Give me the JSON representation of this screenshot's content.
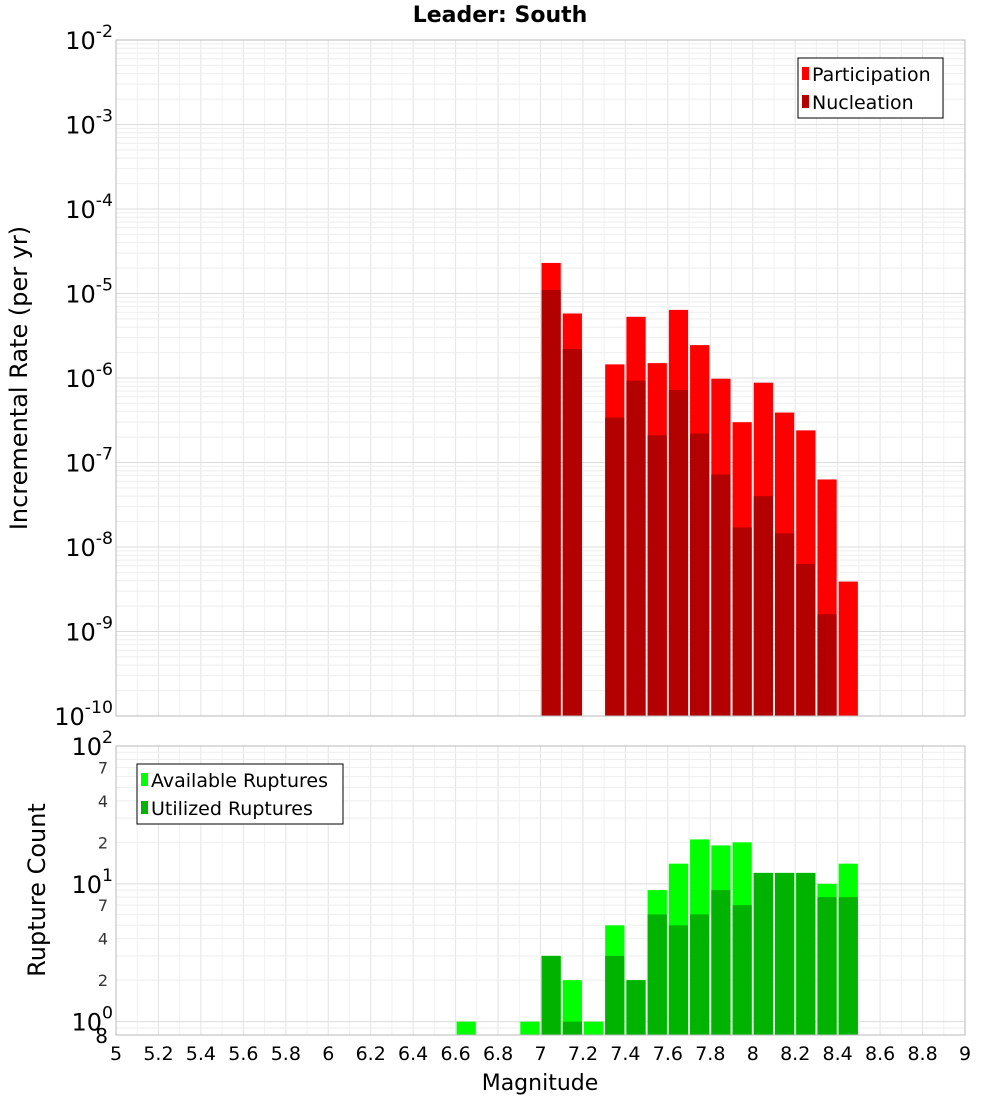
{
  "chart_data": [
    {
      "type": "bar",
      "title": "Leader: South",
      "ylabel": "Incremental Rate (per yr)",
      "xlabel": "",
      "yscale": "log",
      "ylim": [
        1e-10,
        0.01
      ],
      "y_tick_labels": [
        {
          "base": "10",
          "exp": "-10"
        },
        {
          "base": "10",
          "exp": "-9"
        },
        {
          "base": "10",
          "exp": "-8"
        },
        {
          "base": "10",
          "exp": "-7"
        },
        {
          "base": "10",
          "exp": "-6"
        },
        {
          "base": "10",
          "exp": "-5"
        },
        {
          "base": "10",
          "exp": "-4"
        },
        {
          "base": "10",
          "exp": "-3"
        },
        {
          "base": "10",
          "exp": "-2"
        }
      ],
      "grid": true,
      "legend_position": "top-right",
      "series": [
        {
          "name": "Participation",
          "color": "#ff0000",
          "x": [
            7.05,
            7.15,
            7.35,
            7.45,
            7.55,
            7.65,
            7.75,
            7.85,
            7.95,
            8.05,
            8.15,
            8.25,
            8.35,
            8.45
          ],
          "values": [
            2.3e-05,
            5.8e-06,
            1.45e-06,
            5.3e-06,
            1.5e-06,
            6.4e-06,
            2.45e-06,
            9.8e-07,
            3e-07,
            8.8e-07,
            3.9e-07,
            2.4e-07,
            6.3e-08,
            3.9e-09
          ]
        },
        {
          "name": "Nucleation",
          "color": "#b30000",
          "x": [
            7.05,
            7.15,
            7.35,
            7.45,
            7.55,
            7.65,
            7.75,
            7.85,
            7.95,
            8.05,
            8.15,
            8.25,
            8.35,
            8.45
          ],
          "values": [
            1.1e-05,
            2.2e-06,
            3.4e-07,
            9.3e-07,
            2.1e-07,
            7.2e-07,
            2.2e-07,
            7.2e-08,
            1.7e-08,
            4e-08,
            1.45e-08,
            6.3e-09,
            1.6e-09,
            1e-10
          ]
        }
      ]
    },
    {
      "type": "bar",
      "title": "",
      "ylabel": "Rupture Count",
      "xlabel": "Magnitude",
      "yscale": "log",
      "ylim": [
        0.8,
        100
      ],
      "y_tick_labels": [
        {
          "base": "10",
          "exp": "0",
          "v": 1
        },
        {
          "base": "10",
          "exp": "1",
          "v": 10
        },
        {
          "base": "10",
          "exp": "2",
          "v": 100
        }
      ],
      "y_minor_labels": [
        {
          "text": "8",
          "v": 0.8
        },
        {
          "text": "2",
          "v": 2
        },
        {
          "text": "4",
          "v": 4
        },
        {
          "text": "7",
          "v": 7
        },
        {
          "text": "2",
          "v": 20
        },
        {
          "text": "4",
          "v": 40
        },
        {
          "text": "7",
          "v": 70
        }
      ],
      "xlim": [
        5,
        9
      ],
      "x_tick_labels": [
        "5",
        "5.2",
        "5.4",
        "5.6",
        "5.8",
        "6",
        "6.2",
        "6.4",
        "6.6",
        "6.8",
        "7",
        "7.2",
        "7.4",
        "7.6",
        "7.8",
        "8",
        "8.2",
        "8.4",
        "8.6",
        "8.8",
        "9"
      ],
      "grid": true,
      "legend_position": "top-left",
      "series": [
        {
          "name": "Available Ruptures",
          "color": "#00ff00",
          "x": [
            6.65,
            6.95,
            7.05,
            7.15,
            7.25,
            7.35,
            7.45,
            7.55,
            7.65,
            7.75,
            7.85,
            7.95,
            8.05,
            8.15,
            8.25,
            8.35,
            8.45
          ],
          "values": [
            1,
            1,
            3,
            2,
            1,
            5,
            2,
            9,
            14,
            21,
            19,
            20,
            12,
            12,
            12,
            10,
            14
          ]
        },
        {
          "name": "Utilized Ruptures",
          "color": "#00b300",
          "x": [
            7.05,
            7.15,
            7.35,
            7.45,
            7.55,
            7.65,
            7.75,
            7.85,
            7.95,
            8.05,
            8.15,
            8.25,
            8.35,
            8.45
          ],
          "values": [
            3,
            1,
            3,
            2,
            6,
            5,
            6,
            9,
            7,
            12,
            12,
            12,
            8,
            8
          ]
        }
      ]
    }
  ]
}
